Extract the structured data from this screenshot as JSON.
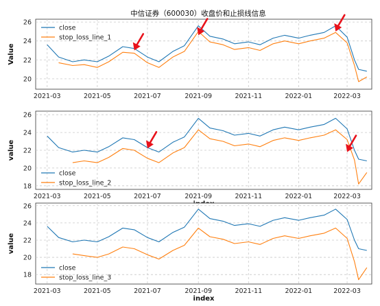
{
  "title": "中信证券（600030）收盘价和止损线信息",
  "colors": {
    "close": "#1f77b4",
    "stop": "#ff7f0e",
    "arrow": "#e8121b",
    "grid": "#c8c8c8"
  },
  "chart_data": [
    {
      "type": "line",
      "xlabel": "",
      "ylabel": "Value",
      "yticks": [
        20,
        22,
        24,
        26
      ],
      "ylim": [
        18.9,
        26.3
      ],
      "legend_position": "upper left",
      "xticks": [
        "2021-03",
        "2021-05",
        "2021-07",
        "2021-09",
        "2021-11",
        "2022-01",
        "2022-03"
      ],
      "x": [
        "2021-03-01",
        "2021-03-15",
        "2021-04-01",
        "2021-04-15",
        "2021-05-01",
        "2021-05-15",
        "2021-06-01",
        "2021-06-15",
        "2021-07-01",
        "2021-07-15",
        "2021-08-01",
        "2021-08-15",
        "2021-09-01",
        "2021-09-15",
        "2021-10-01",
        "2021-10-15",
        "2021-11-01",
        "2021-11-15",
        "2021-12-01",
        "2021-12-15",
        "2022-01-01",
        "2022-01-15",
        "2022-02-01",
        "2022-02-15",
        "2022-03-01",
        "2022-03-10",
        "2022-03-15",
        "2022-03-25"
      ],
      "series": [
        {
          "name": "close",
          "values": [
            23.6,
            22.3,
            21.8,
            22.0,
            21.8,
            22.4,
            23.4,
            23.2,
            22.3,
            21.8,
            22.9,
            23.5,
            25.6,
            24.5,
            24.2,
            23.7,
            23.9,
            23.6,
            24.3,
            24.6,
            24.3,
            24.6,
            24.9,
            25.6,
            24.4,
            22.0,
            21.0,
            20.8
          ]
        },
        {
          "name": "stop_loss_line_1",
          "values": [
            null,
            21.7,
            21.4,
            21.5,
            21.2,
            21.8,
            22.8,
            22.7,
            21.7,
            21.2,
            22.3,
            22.9,
            25.0,
            23.9,
            23.6,
            23.1,
            23.3,
            23.0,
            23.7,
            24.0,
            23.7,
            24.0,
            24.3,
            24.9,
            23.8,
            21.4,
            19.7,
            20.2
          ]
        }
      ],
      "annotations": [
        {
          "type": "arrow",
          "date": "2021-06-15",
          "value": 23.0
        },
        {
          "type": "arrow",
          "date": "2021-09-01",
          "value": 24.6
        },
        {
          "type": "arrow",
          "date": "2022-02-15",
          "value": 25.0
        }
      ]
    },
    {
      "type": "line",
      "xlabel": "index",
      "ylabel": "value",
      "yticks": [
        18,
        20,
        22,
        24,
        26
      ],
      "ylim": [
        17.6,
        26.4
      ],
      "legend_position": "lower left",
      "xticks": [
        "2021-03",
        "2021-05",
        "2021-07",
        "2021-09",
        "2021-11",
        "2022-01",
        "2022-03"
      ],
      "x": [
        "2021-03-01",
        "2021-03-15",
        "2021-04-01",
        "2021-04-15",
        "2021-05-01",
        "2021-05-15",
        "2021-06-01",
        "2021-06-15",
        "2021-07-01",
        "2021-07-15",
        "2021-08-01",
        "2021-08-15",
        "2021-09-01",
        "2021-09-15",
        "2021-10-01",
        "2021-10-15",
        "2021-11-01",
        "2021-11-15",
        "2021-12-01",
        "2021-12-15",
        "2022-01-01",
        "2022-01-15",
        "2022-02-01",
        "2022-02-15",
        "2022-03-01",
        "2022-03-10",
        "2022-03-15",
        "2022-03-25"
      ],
      "series": [
        {
          "name": "close",
          "values": [
            23.6,
            22.3,
            21.8,
            22.0,
            21.8,
            22.4,
            23.4,
            23.2,
            22.3,
            21.8,
            22.9,
            23.5,
            25.6,
            24.5,
            24.2,
            23.7,
            23.9,
            23.6,
            24.3,
            24.6,
            24.3,
            24.6,
            24.9,
            25.6,
            24.4,
            22.0,
            21.0,
            20.8
          ]
        },
        {
          "name": "stop_loss_line_2",
          "values": [
            null,
            null,
            20.6,
            20.8,
            20.6,
            21.2,
            22.2,
            22.0,
            21.1,
            20.6,
            21.7,
            22.3,
            24.3,
            23.3,
            23.0,
            22.5,
            22.7,
            22.4,
            23.1,
            23.4,
            23.1,
            23.4,
            23.7,
            24.3,
            23.2,
            20.9,
            18.2,
            19.5
          ]
        }
      ],
      "annotations": [
        {
          "type": "arrow",
          "date": "2021-07-01",
          "value": 22.2
        },
        {
          "type": "arrow",
          "date": "2022-03-01",
          "value": 21.8
        }
      ]
    },
    {
      "type": "line",
      "xlabel": "index",
      "ylabel": "value",
      "yticks": [
        18,
        20,
        22,
        24,
        26
      ],
      "ylim": [
        16.9,
        26.3
      ],
      "legend_position": "lower left",
      "xticks": [
        "2021-03",
        "2021-05",
        "2021-07",
        "2021-09",
        "2021-11",
        "2022-01",
        "2022-03"
      ],
      "x": [
        "2021-03-01",
        "2021-03-15",
        "2021-04-01",
        "2021-04-15",
        "2021-05-01",
        "2021-05-15",
        "2021-06-01",
        "2021-06-15",
        "2021-07-01",
        "2021-07-15",
        "2021-08-01",
        "2021-08-15",
        "2021-09-01",
        "2021-09-15",
        "2021-10-01",
        "2021-10-15",
        "2021-11-01",
        "2021-11-15",
        "2021-12-01",
        "2021-12-15",
        "2022-01-01",
        "2022-01-15",
        "2022-02-01",
        "2022-02-15",
        "2022-03-01",
        "2022-03-10",
        "2022-03-15",
        "2022-03-25"
      ],
      "series": [
        {
          "name": "close",
          "values": [
            23.6,
            22.3,
            21.8,
            22.0,
            21.8,
            22.4,
            23.4,
            23.2,
            22.3,
            21.8,
            22.9,
            23.5,
            25.6,
            24.5,
            24.2,
            23.7,
            23.9,
            23.6,
            24.3,
            24.6,
            24.3,
            24.6,
            24.9,
            25.6,
            24.4,
            22.0,
            21.0,
            20.8
          ]
        },
        {
          "name": "stop_loss_line_3",
          "values": [
            null,
            null,
            20.4,
            20.2,
            20.0,
            20.4,
            21.2,
            21.0,
            20.3,
            19.8,
            20.8,
            21.4,
            23.4,
            22.4,
            22.1,
            21.6,
            21.8,
            21.5,
            22.2,
            22.5,
            22.2,
            22.5,
            22.8,
            23.4,
            22.2,
            19.5,
            17.4,
            18.8
          ]
        }
      ],
      "annotations": []
    }
  ]
}
